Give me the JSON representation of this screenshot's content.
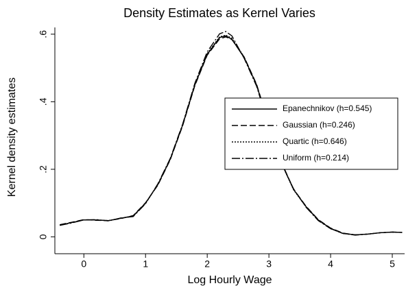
{
  "chart_data": {
    "type": "line",
    "title": "Density Estimates as Kernel Varies",
    "x_label": "Log Hourly Wage",
    "y_label": "Kernel density estimates",
    "x": [
      -0.39,
      -0.2,
      0,
      0.2,
      0.4,
      0.6,
      0.8,
      1.0,
      1.2,
      1.4,
      1.6,
      1.8,
      2.0,
      2.2,
      2.3,
      2.4,
      2.6,
      2.8,
      3.0,
      3.2,
      3.4,
      3.6,
      3.8,
      4.0,
      4.2,
      4.4,
      4.6,
      4.8,
      5.0,
      5.16
    ],
    "series": [
      {
        "name": "Epanechnikov (h=0.545)",
        "color": "#000000",
        "dash": "solid",
        "values": [
          0.035,
          0.042,
          0.05,
          0.05,
          0.048,
          0.055,
          0.062,
          0.1,
          0.155,
          0.23,
          0.33,
          0.45,
          0.54,
          0.59,
          0.595,
          0.585,
          0.53,
          0.45,
          0.33,
          0.22,
          0.14,
          0.09,
          0.05,
          0.025,
          0.01,
          0.006,
          0.008,
          0.012,
          0.014,
          0.013
        ]
      },
      {
        "name": "Gaussian (h=0.246)",
        "color": "#000000",
        "dash": "dashed",
        "values": [
          0.036,
          0.043,
          0.051,
          0.049,
          0.048,
          0.054,
          0.063,
          0.101,
          0.153,
          0.228,
          0.328,
          0.448,
          0.538,
          0.586,
          0.592,
          0.584,
          0.532,
          0.452,
          0.333,
          0.222,
          0.141,
          0.091,
          0.051,
          0.026,
          0.011,
          0.006,
          0.008,
          0.012,
          0.014,
          0.013
        ]
      },
      {
        "name": "Quartic (h=0.646)",
        "color": "#000000",
        "dash": "dotted",
        "values": [
          0.035,
          0.042,
          0.05,
          0.05,
          0.048,
          0.055,
          0.061,
          0.099,
          0.154,
          0.229,
          0.331,
          0.452,
          0.543,
          0.592,
          0.597,
          0.588,
          0.532,
          0.449,
          0.329,
          0.219,
          0.139,
          0.089,
          0.049,
          0.024,
          0.01,
          0.006,
          0.008,
          0.012,
          0.014,
          0.013
        ]
      },
      {
        "name": "Uniform (h=0.214)",
        "color": "#000000",
        "dash": "dashdot",
        "values": [
          0.034,
          0.041,
          0.05,
          0.051,
          0.047,
          0.056,
          0.06,
          0.098,
          0.157,
          0.232,
          0.333,
          0.455,
          0.548,
          0.601,
          0.608,
          0.595,
          0.528,
          0.446,
          0.327,
          0.218,
          0.142,
          0.088,
          0.048,
          0.024,
          0.01,
          0.005,
          0.008,
          0.012,
          0.014,
          0.013
        ]
      }
    ],
    "xlim": [
      -0.47,
      5.2
    ],
    "ylim": [
      -0.05,
      0.62
    ],
    "xticks": [
      0,
      1,
      2,
      3,
      4,
      5
    ],
    "yticks": [
      0,
      {
        "value": 0.2,
        "label": ".2"
      },
      {
        "value": 0.4,
        "label": ".4"
      },
      {
        "value": 0.6,
        "label": ".6"
      }
    ],
    "grid": false,
    "legend": "right"
  }
}
